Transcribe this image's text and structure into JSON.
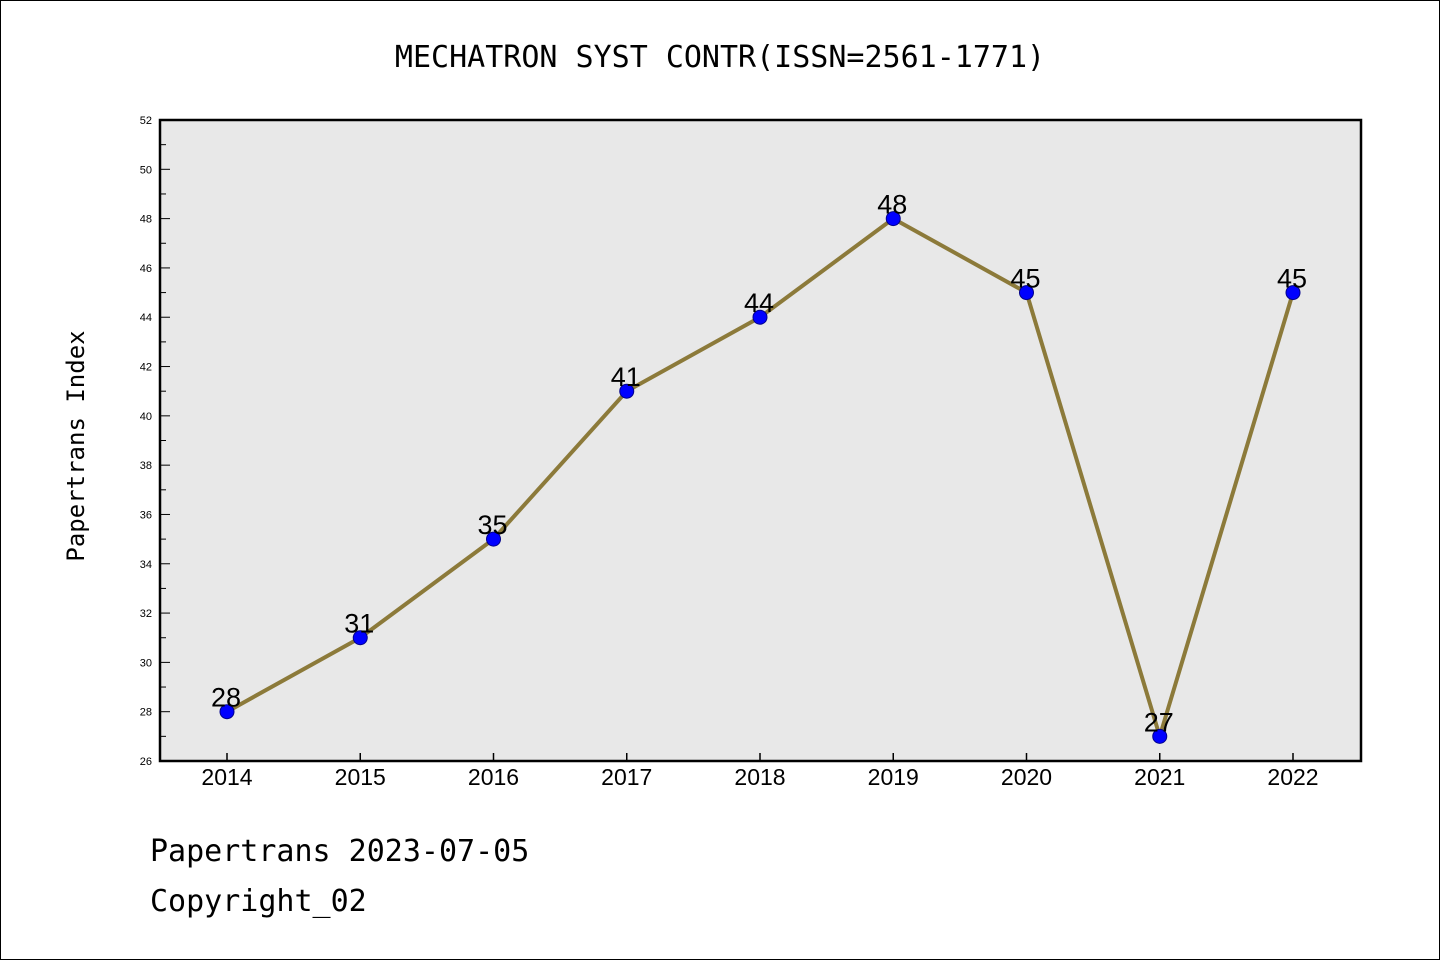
{
  "chart_data": {
    "type": "line",
    "title": "MECHATRON SYST CONTR(ISSN=2561-1771)",
    "xlabel": "",
    "ylabel": "Papertrans Index",
    "categories": [
      "2014",
      "2015",
      "2016",
      "2017",
      "2018",
      "2019",
      "2020",
      "2021",
      "2022"
    ],
    "series": [
      {
        "values": [
          28,
          31,
          35,
          41,
          44,
          48,
          45,
          27,
          45
        ]
      }
    ],
    "ylim": [
      26,
      52
    ],
    "yticks": [
      26,
      28,
      30,
      32,
      34,
      36,
      38,
      40,
      42,
      44,
      46,
      48,
      50,
      52
    ],
    "grid": false,
    "legend": "none",
    "colors": {
      "line": "#8c7a3a",
      "marker": "#0000ff",
      "plot_bg": "#e8e8e8"
    }
  },
  "footer": {
    "line1": "Papertrans 2023-07-05",
    "line2": "Copyright_02"
  }
}
